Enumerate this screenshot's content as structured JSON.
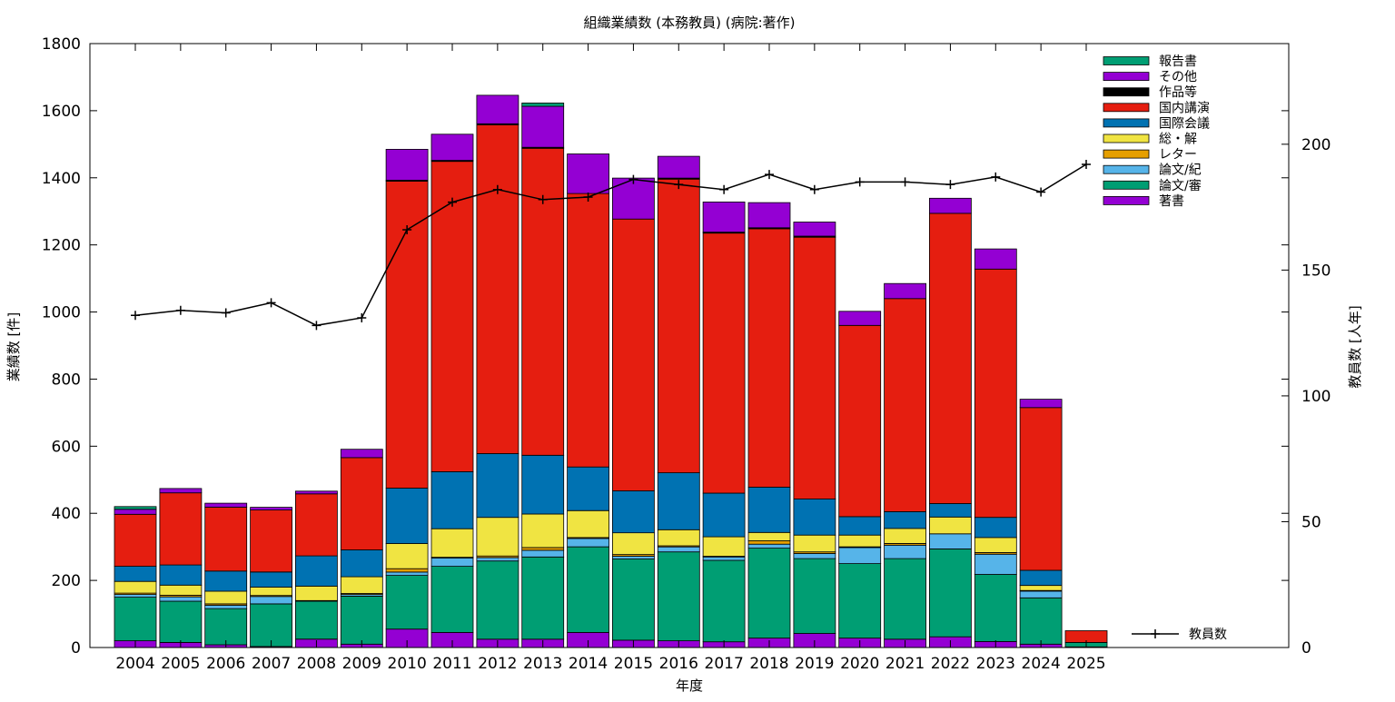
{
  "chart_data": {
    "type": "bar",
    "stacked": true,
    "title": "組織業績数 (本務教員) (病院:著作)",
    "xlabel": "年度",
    "ylabel": "業績数 [件]",
    "y2label": "教員数 [人年]",
    "ylim": [
      0,
      1800
    ],
    "y2lim": [
      0,
      240
    ],
    "yticks": [
      "0",
      "200",
      "400",
      "600",
      "800",
      "1000",
      "1200",
      "1400",
      "1600",
      "1800"
    ],
    "y2ticks": [
      "0",
      "50",
      "100",
      "150",
      "200"
    ],
    "grid": false,
    "legend_position": "top-right",
    "categories": [
      "2004",
      "2005",
      "2006",
      "2007",
      "2008",
      "2009",
      "2010",
      "2011",
      "2012",
      "2013",
      "2014",
      "2015",
      "2016",
      "2017",
      "2018",
      "2019",
      "2020",
      "2021",
      "2022",
      "2023",
      "2024",
      "2025"
    ],
    "series": [
      {
        "name": "著書",
        "color": "#9400d3",
        "values": [
          20,
          15,
          8,
          3,
          25,
          10,
          55,
          45,
          25,
          25,
          45,
          22,
          20,
          17,
          28,
          42,
          28,
          25,
          32,
          18,
          10,
          2
        ]
      },
      {
        "name": "論文/審",
        "color": "#009e73",
        "values": [
          130,
          123,
          108,
          127,
          113,
          143,
          160,
          197,
          233,
          245,
          255,
          242,
          265,
          243,
          268,
          223,
          222,
          240,
          262,
          200,
          138,
          13
        ]
      },
      {
        "name": "論文/紀",
        "color": "#56b4e9",
        "values": [
          8,
          13,
          10,
          22,
          0,
          5,
          10,
          25,
          10,
          20,
          25,
          8,
          15,
          10,
          12,
          15,
          48,
          40,
          45,
          60,
          20,
          0
        ]
      },
      {
        "name": "レター",
        "color": "#e69f00",
        "values": [
          4,
          5,
          4,
          3,
          2,
          3,
          10,
          2,
          5,
          8,
          3,
          5,
          3,
          2,
          10,
          5,
          2,
          5,
          0,
          5,
          2,
          0
        ]
      },
      {
        "name": "総・解",
        "color": "#f0e442",
        "values": [
          35,
          30,
          38,
          25,
          43,
          50,
          75,
          85,
          115,
          100,
          80,
          65,
          48,
          58,
          25,
          50,
          35,
          45,
          50,
          45,
          15,
          0
        ]
      },
      {
        "name": "国際会議",
        "color": "#0072b2",
        "values": [
          45,
          60,
          60,
          45,
          90,
          80,
          165,
          170,
          190,
          175,
          130,
          125,
          170,
          130,
          135,
          108,
          55,
          50,
          40,
          60,
          45,
          0
        ]
      },
      {
        "name": "国内講演",
        "color": "#e51e10",
        "values": [
          155,
          215,
          190,
          185,
          185,
          275,
          915,
          925,
          980,
          915,
          815,
          810,
          875,
          775,
          770,
          780,
          570,
          635,
          865,
          740,
          485,
          35
        ]
      },
      {
        "name": "作品等",
        "color": "#000000",
        "values": [
          0,
          0,
          0,
          0,
          0,
          0,
          3,
          3,
          3,
          3,
          0,
          0,
          3,
          3,
          3,
          3,
          0,
          0,
          0,
          0,
          0,
          0
        ]
      },
      {
        "name": "その他",
        "color": "#9400d3",
        "values": [
          15,
          13,
          12,
          8,
          8,
          25,
          92,
          78,
          85,
          122,
          118,
          122,
          65,
          90,
          75,
          42,
          42,
          45,
          45,
          60,
          25,
          0
        ]
      },
      {
        "name": "報告書",
        "color": "#009e73",
        "values": [
          8,
          0,
          0,
          0,
          0,
          0,
          0,
          0,
          0,
          10,
          0,
          0,
          0,
          0,
          0,
          0,
          0,
          0,
          0,
          0,
          0,
          0
        ]
      }
    ],
    "line_series": {
      "name": "教員数",
      "axis": "right",
      "color": "#000000",
      "values": [
        132,
        134,
        133,
        137,
        128,
        131,
        166,
        177,
        182,
        178,
        179,
        186,
        184,
        182,
        188,
        182,
        185,
        185,
        184,
        187,
        181,
        192
      ]
    }
  }
}
